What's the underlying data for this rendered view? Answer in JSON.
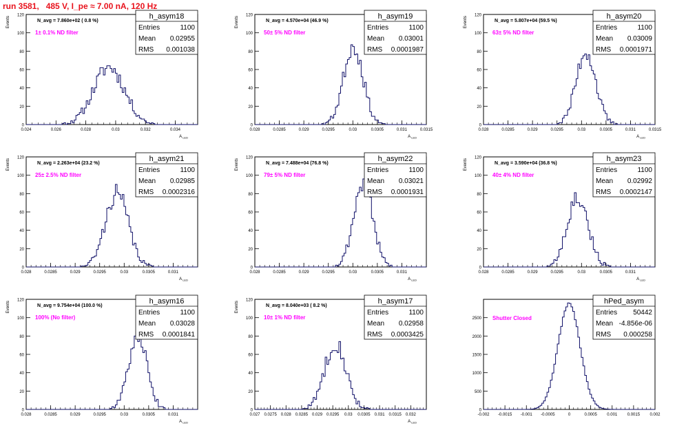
{
  "header": {
    "title": "run 3581,   485 V, I_pe ≈ 7.00 nA, 120 Hz"
  },
  "colors": {
    "title": "#e8121c",
    "annotation": "#ff00ff",
    "histogram": "#0d0d66",
    "axis": "#000000"
  },
  "chart_data": [
    {
      "type": "histogram",
      "name": "h_asym18",
      "xlabel": "A_LED",
      "ylabel": "Events",
      "xlim": [
        0.024,
        0.0355
      ],
      "ylim": [
        0,
        120
      ],
      "xticks": [
        0.024,
        0.026,
        0.028,
        0.03,
        0.032,
        0.034
      ],
      "xtick_labels": [
        "0.024",
        "0.026",
        "0.028",
        "0.03",
        "0.032",
        "0.034"
      ],
      "yticks": [
        0,
        20,
        40,
        60,
        80,
        100,
        120
      ],
      "stats": {
        "entries": "1100",
        "mean": "0.02955",
        "rms": "0.001038"
      },
      "n_avg": "N_avg = 7.860e+02 ( 0.8 %)",
      "filter": "1± 0.1% ND filter",
      "dist": {
        "mean": 0.02955,
        "sigma": 0.001038,
        "peak": 63,
        "seed": 11
      }
    },
    {
      "type": "histogram",
      "name": "h_asym19",
      "xlabel": "A_LED",
      "ylabel": "Events",
      "xlim": [
        0.028,
        0.0315
      ],
      "ylim": [
        0,
        120
      ],
      "xticks": [
        0.028,
        0.0285,
        0.029,
        0.0295,
        0.03,
        0.0305,
        0.031,
        0.0315
      ],
      "xtick_labels": [
        "0.028",
        "0.0285",
        "0.029",
        "0.0295",
        "0.03",
        "0.0305",
        "0.031",
        "0.0315"
      ],
      "yticks": [
        0,
        20,
        40,
        60,
        80,
        100,
        120
      ],
      "stats": {
        "entries": "1100",
        "mean": "0.03001",
        "rms": "0.0001987"
      },
      "n_avg": "N_avg = 4.570e+04 (46.9 %)",
      "filter": "50± 5% ND filter",
      "dist": {
        "mean": 0.03001,
        "sigma": 0.0001987,
        "peak": 86,
        "seed": 23
      }
    },
    {
      "type": "histogram",
      "name": "h_asym20",
      "xlabel": "A_LED",
      "ylabel": "Events",
      "xlim": [
        0.028,
        0.0315
      ],
      "ylim": [
        0,
        120
      ],
      "xticks": [
        0.028,
        0.0285,
        0.029,
        0.0295,
        0.03,
        0.0305,
        0.031,
        0.0315
      ],
      "xtick_labels": [
        "0.028",
        "0.0285",
        "0.029",
        "0.0295",
        "0.03",
        "0.0305",
        "0.031",
        "0.0315"
      ],
      "yticks": [
        0,
        20,
        40,
        60,
        80,
        100,
        120
      ],
      "stats": {
        "entries": "1100",
        "mean": "0.03009",
        "rms": "0.0001971"
      },
      "n_avg": "N_avg = 5.807e+04 (59.5 %)",
      "filter": "63± 5% ND filter",
      "dist": {
        "mean": 0.03009,
        "sigma": 0.0001971,
        "peak": 80,
        "seed": 37
      }
    },
    {
      "type": "histogram",
      "name": "h_asym21",
      "xlabel": "A_LED",
      "ylabel": "Events",
      "xlim": [
        0.028,
        0.0315
      ],
      "ylim": [
        0,
        120
      ],
      "xticks": [
        0.028,
        0.0285,
        0.029,
        0.0295,
        0.03,
        0.0305,
        0.031
      ],
      "xtick_labels": [
        "0.028",
        "0.0285",
        "0.029",
        "0.0295",
        "0.03",
        "0.0305",
        "0.031"
      ],
      "yticks": [
        0,
        20,
        40,
        60,
        80,
        100,
        120
      ],
      "stats": {
        "entries": "1100",
        "mean": "0.02985",
        "rms": "0.0002316"
      },
      "n_avg": "N_avg = 2.263e+04 (23.2 %)",
      "filter": "25± 2.5% ND filter",
      "dist": {
        "mean": 0.02985,
        "sigma": 0.0002316,
        "peak": 81,
        "seed": 41
      }
    },
    {
      "type": "histogram",
      "name": "h_asym22",
      "xlabel": "A_LED",
      "ylabel": "Events",
      "xlim": [
        0.028,
        0.0315
      ],
      "ylim": [
        0,
        120
      ],
      "xticks": [
        0.028,
        0.0285,
        0.029,
        0.0295,
        0.03,
        0.0305,
        0.031
      ],
      "xtick_labels": [
        "0.028",
        "0.0285",
        "0.029",
        "0.0295",
        "0.03",
        "0.0305",
        "0.031"
      ],
      "yticks": [
        0,
        20,
        40,
        60,
        80,
        100,
        120
      ],
      "stats": {
        "entries": "1100",
        "mean": "0.03021",
        "rms": "0.0001931"
      },
      "n_avg": "N_avg = 7.488e+04 (76.8 %)",
      "filter": "79± 5% ND filter",
      "dist": {
        "mean": 0.03021,
        "sigma": 0.0001931,
        "peak": 92,
        "seed": 53
      }
    },
    {
      "type": "histogram",
      "name": "h_asym23",
      "xlabel": "A_LED",
      "ylabel": "Events",
      "xlim": [
        0.028,
        0.0315
      ],
      "ylim": [
        0,
        120
      ],
      "xticks": [
        0.028,
        0.0285,
        0.029,
        0.0295,
        0.03,
        0.0305,
        0.031
      ],
      "xtick_labels": [
        "0.028",
        "0.0285",
        "0.029",
        "0.0295",
        "0.03",
        "0.0305",
        "0.031"
      ],
      "yticks": [
        0,
        20,
        40,
        60,
        80,
        100,
        120
      ],
      "stats": {
        "entries": "1100",
        "mean": "0.02992",
        "rms": "0.0002147"
      },
      "n_avg": "N_avg = 3.590e+04 (36.8 %)",
      "filter": "40± 4% ND filter",
      "dist": {
        "mean": 0.02992,
        "sigma": 0.0002147,
        "peak": 77,
        "seed": 67
      }
    },
    {
      "type": "histogram",
      "name": "h_asym16",
      "xlabel": "A_LED",
      "ylabel": "Events",
      "xlim": [
        0.028,
        0.0315
      ],
      "ylim": [
        0,
        120
      ],
      "xticks": [
        0.028,
        0.0285,
        0.029,
        0.0295,
        0.03,
        0.0305,
        0.031
      ],
      "xtick_labels": [
        "0.028",
        "0.0285",
        "0.029",
        "0.0295",
        "0.03",
        "0.0305",
        "0.031"
      ],
      "yticks": [
        0,
        20,
        40,
        60,
        80,
        100,
        120
      ],
      "stats": {
        "entries": "1100",
        "mean": "0.03028",
        "rms": "0.0001841"
      },
      "n_avg": "N_avg = 9.754e+04 (100.0 %)",
      "filter": "100% (No filter)",
      "dist": {
        "mean": 0.03028,
        "sigma": 0.0001841,
        "peak": 84,
        "seed": 71
      }
    },
    {
      "type": "histogram",
      "name": "h_asym17",
      "xlabel": "A_LED",
      "ylabel": "Events",
      "xlim": [
        0.027,
        0.0325
      ],
      "ylim": [
        0,
        120
      ],
      "xticks": [
        0.027,
        0.0275,
        0.028,
        0.0285,
        0.029,
        0.0295,
        0.03,
        0.0305,
        0.031,
        0.0315,
        0.032
      ],
      "xtick_labels": [
        "0.027",
        "0.0275",
        "0.028",
        "0.0285",
        "0.029",
        "0.0295",
        "0.03",
        "0.0305",
        "0.031",
        "0.0315",
        "0.032"
      ],
      "yticks": [
        0,
        20,
        40,
        60,
        80,
        100,
        120
      ],
      "stats": {
        "entries": "1100",
        "mean": "0.02958",
        "rms": "0.0003425"
      },
      "n_avg": "N_avg = 8.040e+03 ( 8.2 %)",
      "filter": "10± 1% ND filter",
      "dist": {
        "mean": 0.02958,
        "sigma": 0.0003425,
        "peak": 73,
        "seed": 83
      }
    },
    {
      "type": "histogram",
      "name": "hPed_asym",
      "xlabel": "",
      "ylabel": "",
      "xlim": [
        -0.002,
        0.002
      ],
      "ylim": [
        0,
        3000
      ],
      "xticks": [
        -0.002,
        -0.0015,
        -0.001,
        -0.0005,
        0,
        0.0005,
        0.001,
        0.0015,
        0.002
      ],
      "xtick_labels": [
        "-0.002",
        "-0.0015",
        "-0.001",
        "-0.0005",
        "0",
        "0.0005",
        "0.001",
        "0.0015",
        "0.002"
      ],
      "yticks": [
        0,
        500,
        1000,
        1500,
        2000,
        2500
      ],
      "stats": {
        "entries": "50442",
        "mean": "-4.856e-06",
        "rms": "0.000258"
      },
      "n_avg": "",
      "filter": "Shutter Closed",
      "dist": {
        "mean": -5e-06,
        "sigma": 0.000258,
        "peak": 2880,
        "seed": 97
      }
    }
  ]
}
